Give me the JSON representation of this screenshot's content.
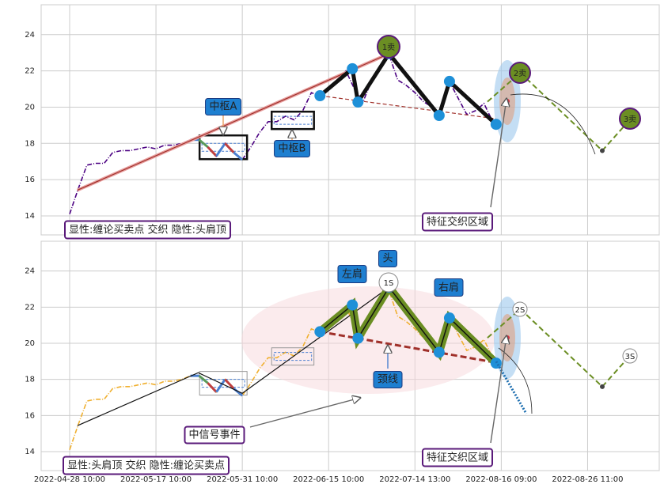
{
  "chart_data": [
    {
      "type": "line",
      "x": [
        0,
        1,
        2,
        3,
        4,
        5,
        6,
        7,
        8,
        9,
        10,
        11,
        12,
        13,
        14,
        15,
        16,
        17,
        18,
        19,
        20,
        21,
        22,
        23,
        24,
        25,
        26,
        27,
        28,
        29,
        30,
        31,
        32,
        33,
        34,
        35,
        36,
        37,
        38,
        39,
        40,
        41,
        42,
        43,
        44,
        45,
        46,
        47,
        48,
        49
      ],
      "series": [
        {
          "color": "#4b0082",
          "values": [
            14.1,
            15.5,
            16.8,
            16.9,
            16.9,
            17.5,
            17.6,
            17.6,
            17.7,
            17.8,
            17.7,
            17.9,
            17.9,
            18.0,
            18.2,
            18.2,
            17.8,
            17.3,
            18.0,
            17.5,
            17.1,
            17.8,
            18.6,
            19.2,
            19.2,
            19.5,
            19.3,
            19.8,
            20.8,
            20.6,
            21.0,
            21.4,
            22.0,
            21.0,
            20.3,
            21.5,
            22.3,
            22.9,
            21.5,
            21.2,
            20.8,
            20.3,
            20.0,
            19.6,
            21.4,
            20.5,
            19.6,
            19.8,
            20.2,
            19.2
          ]
        }
      ],
      "trend": {
        "x": [
          0.9,
          37
        ],
        "y": [
          15.42,
          22.95
        ],
        "color": "#a0302a"
      },
      "strokes": {
        "x": [
          29,
          32.75,
          33.4,
          37,
          42.8,
          44,
          49.4
        ],
        "y": [
          20.63,
          22.12,
          20.28,
          22.95,
          19.54,
          21.42,
          19.05
        ],
        "color": "#111111"
      },
      "neckline": {
        "x": [
          29,
          49.4
        ],
        "y": [
          20.63,
          19.36
        ],
        "color": "#a0302a"
      },
      "projection": {
        "x": [
          48.4,
          52.2,
          61.7,
          65
        ],
        "y": [
          20.3,
          21.9,
          17.6,
          19.36
        ],
        "color": "#6b8e23"
      },
      "boxes": [
        {
          "x": [
            15.05,
            20.55
          ],
          "y": [
            17.13,
            18.44
          ]
        },
        {
          "x": [
            23.4,
            28.3
          ],
          "y": [
            18.79,
            19.75
          ]
        }
      ],
      "box_color": "#111111",
      "signals": [
        "1卖",
        "2卖",
        "3卖"
      ],
      "annotations": [
        "中枢A",
        "中枢B",
        "特征交织区域",
        "显性:缠论买卖点 交织 隐性:头肩顶"
      ],
      "xlim": [
        -3.3,
        68.3
      ],
      "ylim": [
        12.95,
        25.65
      ],
      "yticks": [
        14,
        16,
        18,
        20,
        22,
        24
      ],
      "grid": true
    },
    {
      "type": "line",
      "x": [
        0,
        1,
        2,
        3,
        4,
        5,
        6,
        7,
        8,
        9,
        10,
        11,
        12,
        13,
        14,
        15,
        16,
        17,
        18,
        19,
        20,
        21,
        22,
        23,
        24,
        25,
        26,
        27,
        28,
        29,
        30,
        31,
        32,
        33,
        34,
        35,
        36,
        37,
        38,
        39,
        40,
        41,
        42,
        43,
        44,
        45,
        46,
        47,
        48,
        49
      ],
      "series": [
        {
          "color": "#f0b030",
          "values": [
            14.1,
            15.5,
            16.8,
            16.9,
            16.9,
            17.5,
            17.6,
            17.6,
            17.7,
            17.8,
            17.7,
            17.9,
            17.9,
            18.0,
            18.2,
            18.2,
            17.8,
            17.3,
            18.0,
            17.5,
            17.1,
            17.8,
            18.6,
            19.2,
            19.2,
            19.5,
            19.3,
            19.8,
            20.8,
            20.6,
            21.0,
            21.4,
            22.0,
            21.0,
            20.3,
            21.5,
            22.3,
            22.9,
            21.5,
            21.2,
            20.8,
            20.3,
            20.0,
            19.6,
            21.4,
            20.5,
            19.6,
            19.8,
            20.2,
            19.2
          ]
        }
      ],
      "trend": {
        "x": [
          0.9,
          14.9,
          20,
          37
        ],
        "y": [
          15.44,
          18.37,
          17.23,
          23.1
        ],
        "color": "#111111"
      },
      "strokes": {
        "x": [
          29,
          32.75,
          33.4,
          37,
          42.8,
          44,
          49.4
        ],
        "y": [
          20.64,
          22.12,
          20.28,
          23.1,
          19.5,
          21.4,
          18.9
        ],
        "color": "#6b8e23"
      },
      "neckline": {
        "x": [
          29,
          49.4
        ],
        "y": [
          20.64,
          18.93
        ],
        "color": "#a0302a"
      },
      "projection": {
        "x": [
          48.4,
          52.2,
          61.7,
          65
        ],
        "y": [
          20.3,
          21.9,
          17.6,
          19.36
        ],
        "color": "#6b8e23"
      },
      "boxes": [
        {
          "x": [
            15.05,
            20.55
          ],
          "y": [
            17.13,
            18.44
          ]
        },
        {
          "x": [
            23.4,
            28.3
          ],
          "y": [
            18.79,
            19.75
          ]
        }
      ],
      "box_color": "#999999",
      "signals": [
        "1S",
        "2S",
        "3S"
      ],
      "annotations": [
        "头",
        "左肩",
        "右肩",
        "颈线",
        "中信号事件",
        "特征交织区域",
        "显性:头肩顶 交织 隐性:缠论买卖点"
      ],
      "xlim": [
        -3.3,
        68.3
      ],
      "ylim": [
        12.95,
        25.65
      ],
      "yticks": [
        14,
        16,
        18,
        20,
        22,
        24
      ],
      "grid": true,
      "xticks": [
        {
          "value": 0,
          "label": "2022-04-28 10:00"
        },
        {
          "value": 10,
          "label": "2022-05-17 10:00"
        },
        {
          "value": 20,
          "label": "2022-05-31 10:00"
        },
        {
          "value": 30,
          "label": "2022-06-15 10:00"
        },
        {
          "value": 40,
          "label": "2022-07-14 13:00"
        },
        {
          "value": 50,
          "label": "2022-08-16 09:00"
        },
        {
          "value": 60,
          "label": "2022-08-26 11:00"
        }
      ]
    }
  ]
}
